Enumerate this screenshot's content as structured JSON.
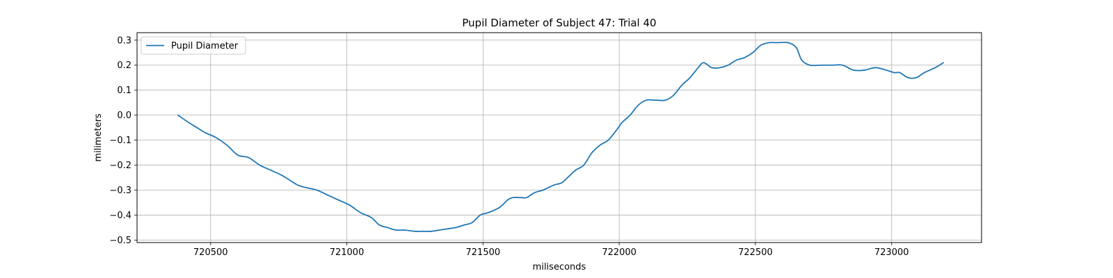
{
  "chart_data": {
    "type": "line",
    "title": "Pupil Diameter of Subject 47: Trial 40",
    "xlabel": "miliseconds",
    "ylabel": "milimeters",
    "xlim": [
      720230,
      723330
    ],
    "ylim": [
      -0.51,
      0.33
    ],
    "xticks": [
      720500,
      721000,
      721500,
      722000,
      722500,
      723000
    ],
    "yticks": [
      -0.5,
      -0.4,
      -0.3,
      -0.2,
      -0.1,
      0.0,
      0.1,
      0.2,
      0.3
    ],
    "xtick_labels": [
      "720500",
      "721000",
      "721500",
      "722000",
      "722500",
      "723000"
    ],
    "ytick_labels": [
      "−0.5",
      "−0.4",
      "−0.3",
      "−0.2",
      "−0.1",
      "0.0",
      "0.1",
      "0.2",
      "0.3"
    ],
    "grid": true,
    "legend_position": "top-left",
    "colors": {
      "series": "#1f77b4",
      "grid": "#b0b0b0",
      "axes": "#000000"
    },
    "series": [
      {
        "name": "Pupil Diameter",
        "x": [
          720380,
          720420,
          720450,
          720480,
          720520,
          720560,
          720600,
          720640,
          720680,
          720720,
          720760,
          720790,
          720820,
          720850,
          720890,
          720930,
          720970,
          721010,
          721050,
          721090,
          721120,
          721150,
          721180,
          721210,
          721250,
          721280,
          721310,
          721340,
          721370,
          721400,
          721430,
          721460,
          721490,
          721520,
          721560,
          721590,
          721610,
          721640,
          721660,
          721690,
          721720,
          721760,
          721790,
          721820,
          721840,
          721870,
          721900,
          721930,
          721960,
          721990,
          722010,
          722040,
          722070,
          722100,
          722130,
          722170,
          722200,
          722230,
          722260,
          722290,
          722310,
          722340,
          722370,
          722400,
          722430,
          722460,
          722490,
          722520,
          722550,
          722580,
          722620,
          722650,
          722670,
          722700,
          722740,
          722780,
          722820,
          722860,
          722900,
          722940,
          722980,
          723010,
          723030,
          723060,
          723090,
          723120,
          723160,
          723190
        ],
        "y": [
          0.0,
          -0.03,
          -0.05,
          -0.07,
          -0.09,
          -0.12,
          -0.16,
          -0.17,
          -0.2,
          -0.22,
          -0.24,
          -0.26,
          -0.28,
          -0.29,
          -0.3,
          -0.32,
          -0.34,
          -0.36,
          -0.39,
          -0.41,
          -0.44,
          -0.45,
          -0.46,
          -0.46,
          -0.465,
          -0.465,
          -0.465,
          -0.46,
          -0.455,
          -0.45,
          -0.44,
          -0.43,
          -0.4,
          -0.39,
          -0.37,
          -0.34,
          -0.33,
          -0.33,
          -0.33,
          -0.31,
          -0.3,
          -0.28,
          -0.27,
          -0.24,
          -0.22,
          -0.2,
          -0.15,
          -0.12,
          -0.1,
          -0.06,
          -0.03,
          0.0,
          0.04,
          0.06,
          0.06,
          0.06,
          0.08,
          0.12,
          0.15,
          0.19,
          0.21,
          0.19,
          0.19,
          0.2,
          0.22,
          0.23,
          0.25,
          0.28,
          0.29,
          0.29,
          0.29,
          0.27,
          0.22,
          0.2,
          0.2,
          0.2,
          0.2,
          0.18,
          0.18,
          0.19,
          0.18,
          0.17,
          0.17,
          0.15,
          0.15,
          0.17,
          0.19,
          0.21
        ]
      }
    ]
  }
}
